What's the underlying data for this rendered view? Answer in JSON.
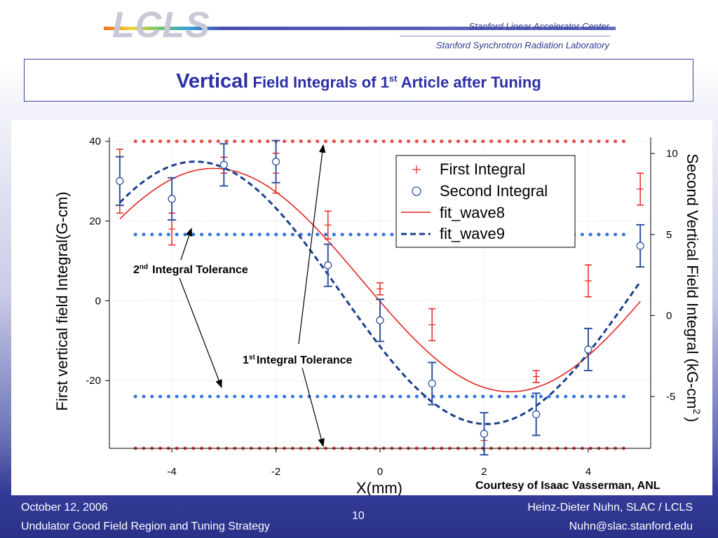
{
  "header": {
    "logo": "LCLS",
    "org_line1": "Stanford Linear Accelerator Center",
    "org_line2": "Stanford Synchrotron Radiation Laboratory"
  },
  "title": {
    "word1": "Vertical",
    "part2": "Field Integrals of 1",
    "sup": "st",
    "part3": "Article after Tuning"
  },
  "chart_data": {
    "type": "scatter",
    "xlabel": "X(mm)",
    "ylabel": "First vertical field Integral(G-cm)",
    "y2label": "Second Vertical Field Integral (kG-cm",
    "y2label_sup": "2",
    "y2label_close": ")",
    "xlim": [
      -5.2,
      5.2
    ],
    "ylim": [
      -37,
      41
    ],
    "y2lim": [
      -8.2,
      11
    ],
    "x_ticks": [
      -4,
      -2,
      0,
      2,
      4
    ],
    "x_tick_labels": [
      "-4",
      "-2",
      "0",
      "2",
      "4"
    ],
    "y_ticks": [
      40,
      20,
      0,
      -20
    ],
    "y_tick_labels": [
      "40",
      "20",
      "0",
      "-20"
    ],
    "y2_ticks": [
      10,
      5,
      0,
      -5
    ],
    "y2_tick_labels": [
      "10",
      "5",
      "0",
      "-5"
    ],
    "grid": "dotted",
    "legend_position": "top-right",
    "legend": [
      "First Integral",
      "Second Integral",
      "fit_wave8",
      "fit_wave9"
    ],
    "first_integral": {
      "name": "First Integral",
      "color": "#e5261f",
      "axis": "left",
      "points": [
        {
          "x": -5,
          "y": 30,
          "err": 8
        },
        {
          "x": -4,
          "y": 18,
          "err": 4
        },
        {
          "x": -3,
          "y": 34,
          "err": 2
        },
        {
          "x": -2,
          "y": 32,
          "err": 5
        },
        {
          "x": -1,
          "y": 19,
          "err": 3.5
        },
        {
          "x": 0,
          "y": 3,
          "err": 1.5
        },
        {
          "x": 1,
          "y": -6,
          "err": 4
        },
        {
          "x": 2,
          "y": -35,
          "err": 0
        },
        {
          "x": 3,
          "y": -19,
          "err": 1.5
        },
        {
          "x": 4,
          "y": 5,
          "err": 4
        },
        {
          "x": 5,
          "y": 28,
          "err": 4
        }
      ]
    },
    "second_integral": {
      "name": "Second Integral",
      "color": "#2e54a0",
      "axis": "right",
      "points": [
        {
          "x": -5,
          "y": 8.3,
          "err": 1.5
        },
        {
          "x": -4,
          "y": 7.2,
          "err": 1.3
        },
        {
          "x": -3,
          "y": 9.3,
          "err": 1.3
        },
        {
          "x": -2,
          "y": 9.5,
          "err": 1.3
        },
        {
          "x": -1,
          "y": 3.1,
          "err": 1.3
        },
        {
          "x": 0,
          "y": -0.3,
          "err": 1.3
        },
        {
          "x": 1,
          "y": -4.2,
          "err": 1.3
        },
        {
          "x": 2,
          "y": -7.3,
          "err": 1.3
        },
        {
          "x": 3,
          "y": -6.1,
          "err": 1.3
        },
        {
          "x": 4,
          "y": -2.1,
          "err": 1.3
        },
        {
          "x": 5,
          "y": 4.3,
          "err": 1.3
        }
      ]
    },
    "fit_wave8": {
      "name": "fit_wave8",
      "color": "#e5261f",
      "axis": "left",
      "style": "solid",
      "offset": 5.2,
      "amplitude": 28,
      "period": 11.4,
      "peak_x": -3.2
    },
    "fit_wave9": {
      "name": "fit_wave9",
      "color": "#1c3e8c",
      "axis": "right",
      "style": "dashed",
      "offset": 1.4,
      "amplitude": 8.1,
      "period": 11.2,
      "peak_x": -3.55
    },
    "tolerance_lines": [
      {
        "name": "1st Integral Tolerance",
        "color": "#ea4a4a",
        "axis": "left",
        "values": [
          40,
          -37
        ]
      },
      {
        "name": "2nd Integral Tolerance",
        "color": "#3574e0",
        "axis": "right",
        "values": [
          5,
          -5
        ]
      }
    ],
    "annotations": {
      "tol2_prefix": "2",
      "tol2_sup": "nd",
      "tol2_text": "Integral Tolerance",
      "tol1_prefix": "1",
      "tol1_sup": "st",
      "tol1_text": "Integral Tolerance",
      "courtesy": "Courtesy of Isaac Vasserman, ANL"
    }
  },
  "footer": {
    "date": "October 12, 2006",
    "subtitle": "Undulator Good Field Region and Tuning Strategy",
    "page": "10",
    "author": "Heinz-Dieter Nuhn, SLAC / LCLS",
    "email": "Nuhn@slac.stanford.edu"
  }
}
